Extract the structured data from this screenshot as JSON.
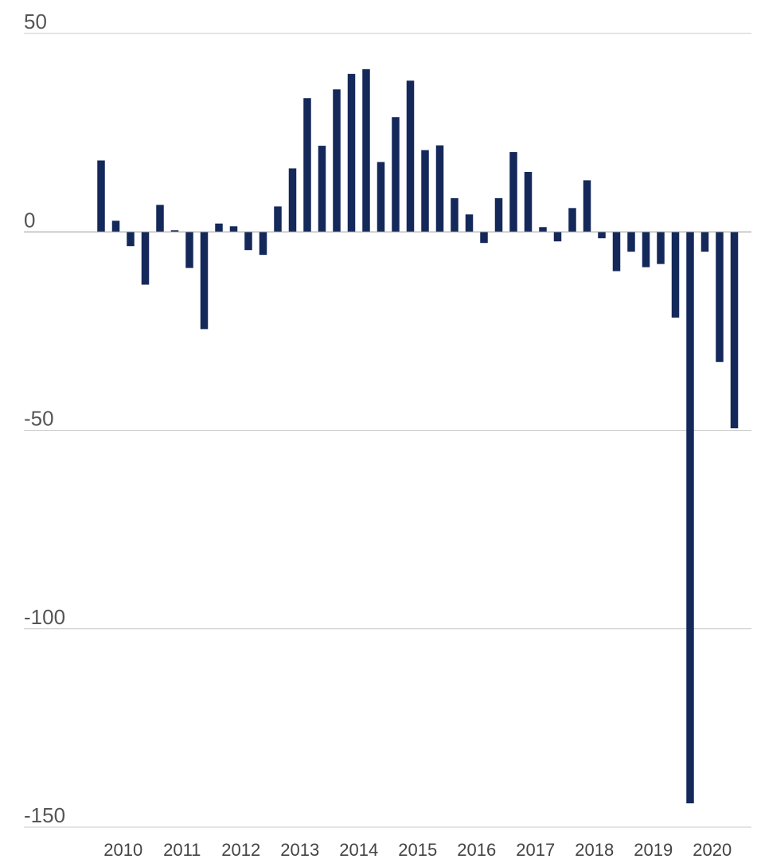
{
  "chart_data": {
    "type": "bar",
    "title": "",
    "xlabel": "",
    "ylabel": "",
    "ylim": [
      -150,
      50
    ],
    "y_ticks": [
      50,
      0,
      -50,
      -100,
      -150
    ],
    "y_tick_labels": [
      "50",
      "0",
      "-50",
      "-100",
      "-150"
    ],
    "x_tick_labels": [
      "2010",
      "2011",
      "2012",
      "2013",
      "2014",
      "2015",
      "2016",
      "2017",
      "2018",
      "2019",
      "2020"
    ],
    "grid": true,
    "bar_color": "#14285a",
    "categories": [
      "2010 Q1",
      "2010 Q2",
      "2010 Q3",
      "2010 Q4",
      "2011 Q1",
      "2011 Q2",
      "2011 Q3",
      "2011 Q4",
      "2012 Q1",
      "2012 Q2",
      "2012 Q3",
      "2012 Q4",
      "2013 Q1",
      "2013 Q2",
      "2013 Q3",
      "2013 Q4",
      "2014 Q1",
      "2014 Q2",
      "2014 Q3",
      "2014 Q4",
      "2015 Q1",
      "2015 Q2",
      "2015 Q3",
      "2015 Q4",
      "2016 Q1",
      "2016 Q2",
      "2016 Q3",
      "2016 Q4",
      "2017 Q1",
      "2017 Q2",
      "2017 Q3",
      "2017 Q4",
      "2018 Q1",
      "2018 Q2",
      "2018 Q3",
      "2018 Q4",
      "2019 Q1",
      "2019 Q2",
      "2019 Q3",
      "2019 Q4",
      "2020 Q1",
      "2020 Q2",
      "2020 Q3",
      "2020 Q4"
    ],
    "values": [
      18,
      2.8,
      -3.6,
      -13.3,
      6.8,
      0.4,
      -9.1,
      -24.5,
      2.1,
      1.4,
      -4.6,
      -5.8,
      6.4,
      16,
      33.7,
      21.7,
      35.9,
      39.8,
      41,
      17.6,
      28.9,
      38.1,
      20.6,
      21.8,
      8.5,
      4.4,
      -2.8,
      8.5,
      20.1,
      15.1,
      1.2,
      -2.4,
      6,
      13,
      -1.6,
      -9.9,
      -5,
      -8.9,
      -8.1,
      -21.6,
      -144,
      -5,
      -32.8,
      -49.5
    ]
  }
}
